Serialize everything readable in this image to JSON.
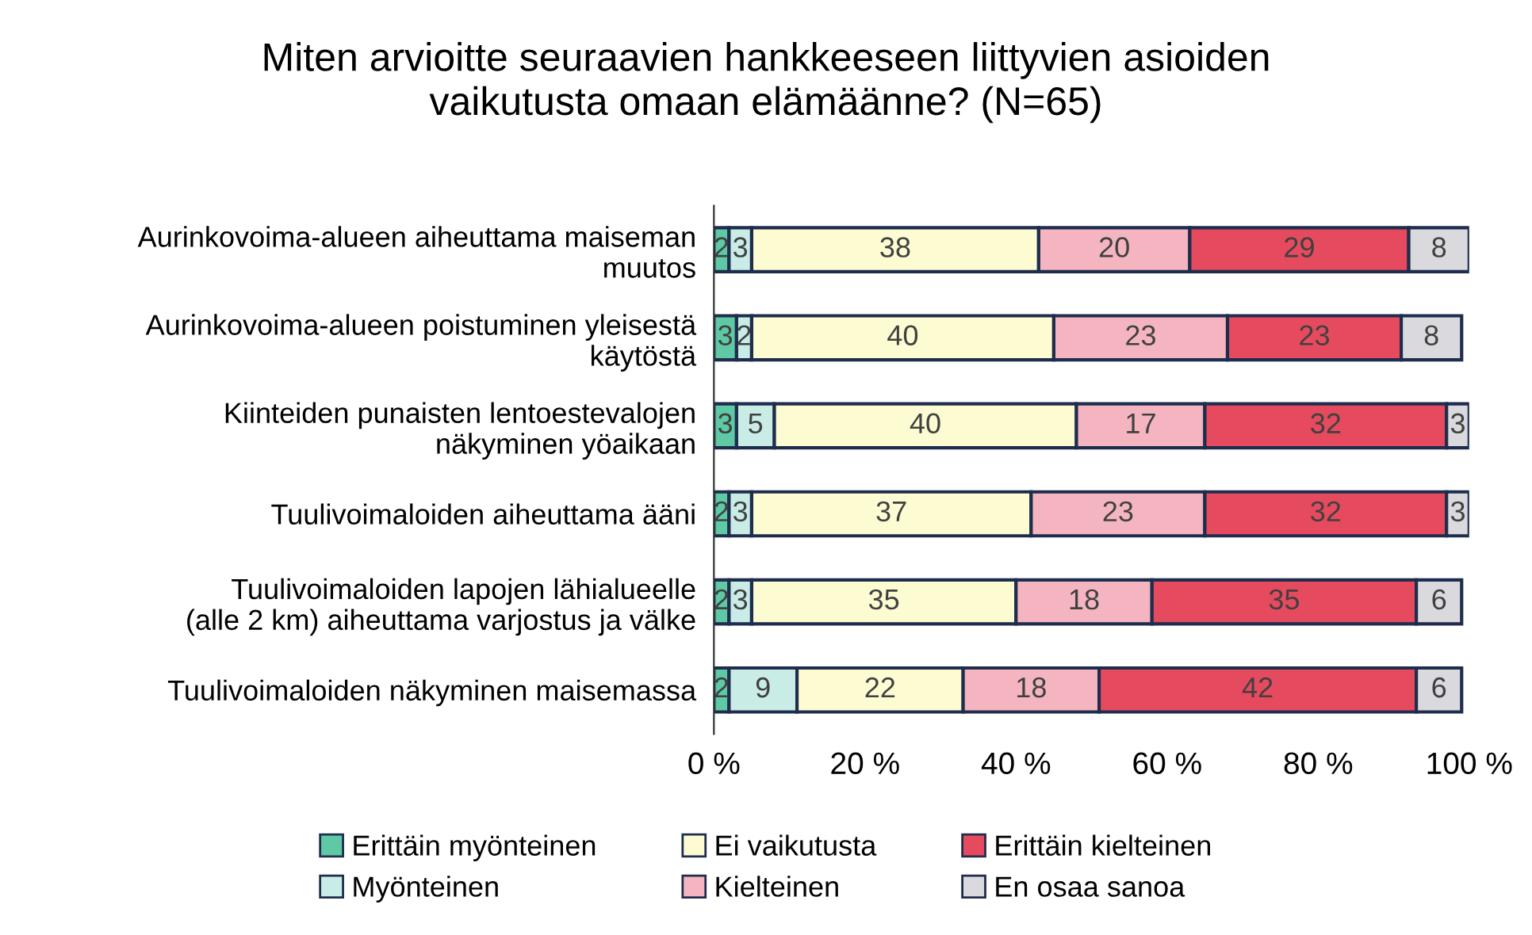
{
  "chart_data": {
    "type": "bar",
    "orientation": "horizontal",
    "stacked": true,
    "title": "Miten arvioitte seuraavien hankkeeseen liittyvien asioiden vaikutusta omaan elämäänne? (N=65)",
    "categories": [
      "Aurinkovoima-alueen aiheuttama maiseman muutos",
      "Aurinkovoima-alueen poistuminen yleisestä käytöstä",
      "Kiinteiden punaisten lentoestevalojen näkyminen yöaikaan",
      "Tuulivoimaloiden aiheuttama ääni",
      "Tuulivoimaloiden lapojen lähialueelle (alle 2 km) aiheuttama varjostus ja välke",
      "Tuulivoimaloiden näkyminen maisemassa"
    ],
    "series": [
      {
        "name": "Erittäin myönteinen",
        "color": "#5ec9a4",
        "values": [
          2,
          3,
          3,
          2,
          2,
          2
        ]
      },
      {
        "name": "Myönteinen",
        "color": "#c9ede6",
        "values": [
          3,
          2,
          5,
          3,
          3,
          9
        ]
      },
      {
        "name": "Ei vaikutusta",
        "color": "#fdfbd2",
        "values": [
          38,
          40,
          40,
          37,
          35,
          22
        ]
      },
      {
        "name": "Kielteinen",
        "color": "#f4b5c0",
        "values": [
          20,
          23,
          17,
          23,
          18,
          18
        ]
      },
      {
        "name": "Erittäin kielteinen",
        "color": "#e64a5e",
        "values": [
          29,
          23,
          32,
          32,
          35,
          42
        ]
      },
      {
        "name": "En osaa sanoa",
        "color": "#d9d9de",
        "values": [
          8,
          8,
          3,
          3,
          6,
          6
        ]
      }
    ],
    "xlim": [
      0,
      100
    ],
    "xticks": [
      {
        "value": 0,
        "label": "0 %"
      },
      {
        "value": 20,
        "label": "20 %"
      },
      {
        "value": 40,
        "label": "40 %"
      },
      {
        "value": 60,
        "label": "60 %"
      },
      {
        "value": 80,
        "label": "80 %"
      },
      {
        "value": 100,
        "label": "100 %"
      }
    ],
    "data_labels": true,
    "grid": false,
    "legend": "bottom"
  }
}
